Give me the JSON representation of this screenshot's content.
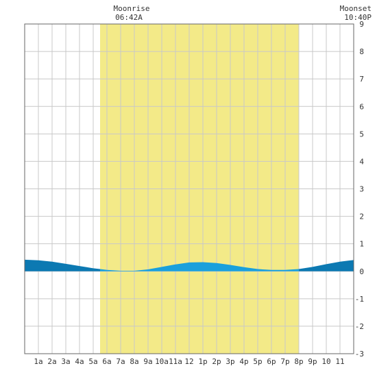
{
  "chart_data": {
    "type": "area",
    "moonrise": {
      "label": "Moonrise",
      "time": "06:42A",
      "hour": 6.7
    },
    "moonset": {
      "label": "Moonset",
      "time": "10:40P",
      "hour": 22.67
    },
    "daylight": {
      "start_hour": 5.5,
      "end_hour": 20.0
    },
    "x_range": [
      0,
      24
    ],
    "ylim": [
      -3,
      9
    ],
    "y_ticks": [
      "9",
      "8",
      "7",
      "6",
      "5",
      "4",
      "3",
      "2",
      "1",
      "0",
      "-1",
      "-2",
      "-3"
    ],
    "x_tick_labels": [
      "1a",
      "2a",
      "3a",
      "4a",
      "5a",
      "6a",
      "7a",
      "8a",
      "9a",
      "10a",
      "11a",
      "12",
      "1p",
      "2p",
      "3p",
      "4p",
      "5p",
      "6p",
      "7p",
      "8p",
      "9p",
      "10",
      "11"
    ],
    "grid": true,
    "series": [
      {
        "x": [
          0,
          1,
          2,
          3,
          4,
          5,
          6,
          7,
          8,
          9,
          10,
          11,
          12,
          13,
          14,
          15,
          16,
          17,
          18,
          19,
          20,
          21,
          22,
          23,
          24
        ],
        "values": [
          0.42,
          0.4,
          0.35,
          0.27,
          0.19,
          0.11,
          0.05,
          0.02,
          0.02,
          0.07,
          0.16,
          0.25,
          0.32,
          0.33,
          0.3,
          0.23,
          0.15,
          0.08,
          0.05,
          0.05,
          0.08,
          0.16,
          0.26,
          0.35,
          0.41
        ]
      }
    ],
    "colors": {
      "daylight": "#f3ea88",
      "grid": "#c8c8c8",
      "frame": "#666666",
      "tide_fill": "#1aa0dc",
      "tide_dark": "#0c79b2"
    }
  }
}
